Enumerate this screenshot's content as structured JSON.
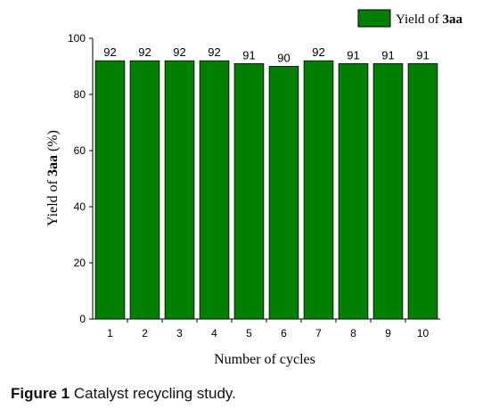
{
  "chart_data": {
    "type": "bar",
    "title": "",
    "xlabel": "Number of cycles",
    "ylabel_prefix": "Yield of ",
    "ylabel_bold": "3aa",
    "ylabel_suffix": " (%)",
    "ylim": [
      0,
      100
    ],
    "yticks": [
      "0",
      "20",
      "40",
      "60",
      "80",
      "100"
    ],
    "categories": [
      "1",
      "2",
      "3",
      "4",
      "5",
      "6",
      "7",
      "8",
      "9",
      "10"
    ],
    "series": [
      {
        "name": "Yield of 3aa",
        "color": "#008000",
        "values": [
          92,
          92,
          92,
          92,
          91,
          90,
          92,
          91,
          91,
          91
        ],
        "labels": [
          "92",
          "92",
          "92",
          "92",
          "91",
          "90",
          "92",
          "91",
          "91",
          "91"
        ]
      }
    ],
    "legend": {
      "position": "top-right",
      "text_prefix": "Yield of ",
      "text_bold": "3aa"
    },
    "grid": false
  },
  "caption": {
    "label": "Figure 1",
    "text": "Catalyst recycling study."
  }
}
